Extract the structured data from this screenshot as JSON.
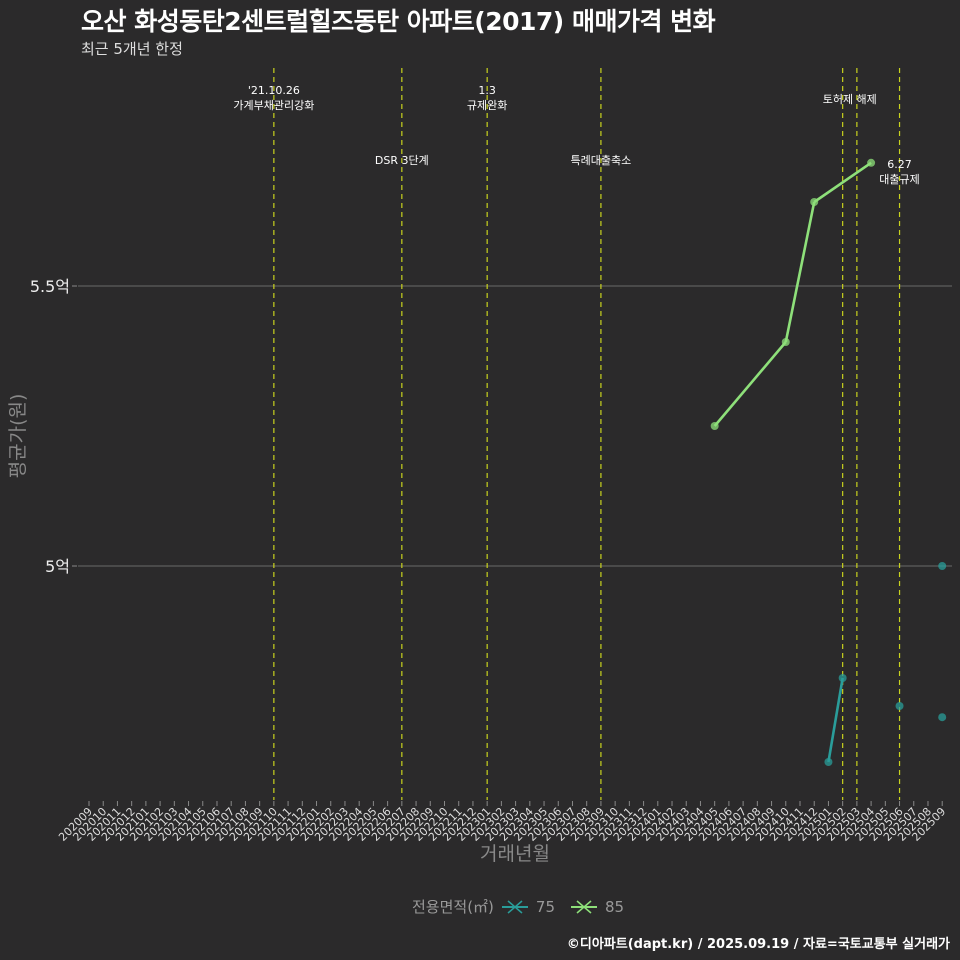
{
  "title": "오산 화성동탄2센트럴힐즈동탄 아파트(2017) 매매가격 변화",
  "subtitle": "최근 5개년 한정",
  "caption": "©디아파트(dapt.kr) / 2025.09.19 / 자료=국토교통부 실거래가",
  "legend": {
    "title": "전용면적(㎡)",
    "items": [
      {
        "label": "75",
        "color": "#2a9d9a"
      },
      {
        "label": "85",
        "color": "#8ee07a"
      }
    ]
  },
  "chart_data": {
    "type": "line",
    "title": "오산 화성동탄2센트럴힐즈동탄 아파트(2017) 매매가격 변화",
    "subtitle": "최근 5개년 한정",
    "xlabel": "거래년월",
    "ylabel": "평균가(원)",
    "ylim": [
      4.58,
      5.78
    ],
    "y_ticks": [
      {
        "value": 5.0,
        "label": "5억"
      },
      {
        "value": 5.5,
        "label": "5.5억"
      }
    ],
    "grid": "horizontal major only",
    "legend_position": "bottom",
    "categories": [
      "202009",
      "202010",
      "202011",
      "202012",
      "202101",
      "202102",
      "202103",
      "202104",
      "202105",
      "202106",
      "202107",
      "202108",
      "202109",
      "202110",
      "202111",
      "202112",
      "202201",
      "202202",
      "202203",
      "202204",
      "202205",
      "202206",
      "202207",
      "202208",
      "202209",
      "202210",
      "202211",
      "202212",
      "202301",
      "202302",
      "202303",
      "202304",
      "202305",
      "202306",
      "202307",
      "202308",
      "202309",
      "202310",
      "202311",
      "202312",
      "202401",
      "202402",
      "202403",
      "202404",
      "202405",
      "202406",
      "202407",
      "202408",
      "202409",
      "202410",
      "202411",
      "202412",
      "202501",
      "202502",
      "202503",
      "202504",
      "202505",
      "202506",
      "202507",
      "202508",
      "202509"
    ],
    "series": [
      {
        "name": "75",
        "color": "#2a9d9a",
        "points": [
          {
            "x": "202501",
            "y": 4.65
          },
          {
            "x": "202502",
            "y": 4.8
          },
          {
            "x": "202506",
            "y": 4.75
          },
          {
            "x": "202509",
            "y": 5.0
          },
          {
            "x": "202509",
            "y": 4.73
          }
        ],
        "connected_segments": [
          [
            0,
            1
          ]
        ]
      },
      {
        "name": "85",
        "color": "#8ee07a",
        "points": [
          {
            "x": "202405",
            "y": 5.25
          },
          {
            "x": "202410",
            "y": 5.4
          },
          {
            "x": "202412",
            "y": 5.65
          },
          {
            "x": "202504",
            "y": 5.72
          }
        ],
        "connected_segments": [
          [
            0,
            1
          ],
          [
            1,
            2
          ],
          [
            2,
            3
          ]
        ]
      }
    ],
    "annotations": [
      {
        "x": "202110",
        "lines": [
          "'21.10.26",
          "가계부채관리강화"
        ],
        "level": 1
      },
      {
        "x": "202207",
        "lines": [
          "DSR 3단계"
        ],
        "level": 2
      },
      {
        "x": "202301",
        "lines": [
          "1.3",
          "규제완화"
        ],
        "level": 1
      },
      {
        "x": "202309",
        "lines": [
          "특례대출축소"
        ],
        "level": 2
      },
      {
        "x": "202502",
        "lines": [
          "토허제 해제"
        ],
        "level": 1,
        "offset": 0.5
      },
      {
        "x": "202503",
        "lines": [],
        "level": 1
      },
      {
        "x": "202506",
        "lines": [
          "6.27",
          "대출규제"
        ],
        "level": 2
      }
    ]
  }
}
